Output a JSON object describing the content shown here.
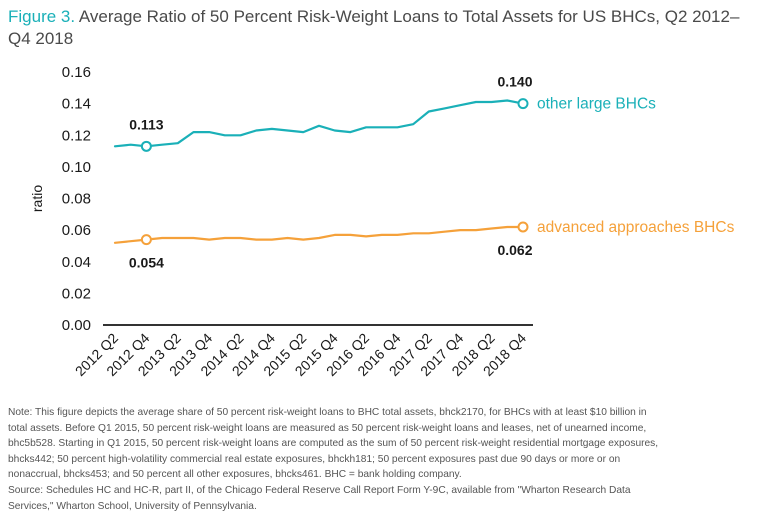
{
  "title": {
    "figure_label": "Figure 3.",
    "text": "Average Ratio of 50 Percent Risk-Weight Loans to Total Assets for US BHCs, Q2 2012–Q4 2018"
  },
  "colors": {
    "other_large": "#1ab0b8",
    "advanced": "#f5a13a",
    "axis": "#333333",
    "text": "#1a1a1a"
  },
  "chart_data": {
    "type": "line",
    "ylabel": "ratio",
    "xlabel": "",
    "ylim": [
      0,
      0.16
    ],
    "yticks": [
      "0.16",
      "0.14",
      "0.12",
      "0.10",
      "0.08",
      "0.06",
      "0.04",
      "0.02",
      "0.00"
    ],
    "x": [
      "2012 Q2",
      "2012 Q3",
      "2012 Q4",
      "2013 Q1",
      "2013 Q2",
      "2013 Q3",
      "2013 Q4",
      "2014 Q1",
      "2014 Q2",
      "2014 Q3",
      "2014 Q4",
      "2015 Q1",
      "2015 Q2",
      "2015 Q3",
      "2015 Q4",
      "2016 Q1",
      "2016 Q2",
      "2016 Q3",
      "2016 Q4",
      "2017 Q1",
      "2017 Q2",
      "2017 Q3",
      "2017 Q4",
      "2018 Q1",
      "2018 Q2",
      "2018 Q3",
      "2018 Q4"
    ],
    "xtick_labels": [
      "2012 Q2",
      "2012 Q4",
      "2013 Q2",
      "2013 Q4",
      "2014 Q2",
      "2014 Q4",
      "2015 Q2",
      "2015 Q4",
      "2016 Q2",
      "2016 Q4",
      "2017 Q2",
      "2017 Q4",
      "2018 Q2",
      "2018 Q4"
    ],
    "series": [
      {
        "name": "other large BHCs",
        "values": [
          0.113,
          0.114,
          0.113,
          0.114,
          0.115,
          0.122,
          0.122,
          0.12,
          0.12,
          0.123,
          0.124,
          0.123,
          0.122,
          0.126,
          0.123,
          0.122,
          0.125,
          0.125,
          0.125,
          0.127,
          0.135,
          0.137,
          0.139,
          0.141,
          0.141,
          0.142,
          0.14
        ],
        "annotations": [
          {
            "label": "0.113",
            "point": "2012 Q4"
          },
          {
            "label": "0.140",
            "point": "2018 Q4"
          }
        ]
      },
      {
        "name": "advanced approaches BHCs",
        "values": [
          0.052,
          0.053,
          0.054,
          0.055,
          0.055,
          0.055,
          0.054,
          0.055,
          0.055,
          0.054,
          0.054,
          0.055,
          0.054,
          0.055,
          0.057,
          0.057,
          0.056,
          0.057,
          0.057,
          0.058,
          0.058,
          0.059,
          0.06,
          0.06,
          0.061,
          0.062,
          0.062
        ],
        "annotations": [
          {
            "label": "0.054",
            "point": "2012 Q4"
          },
          {
            "label": "0.062",
            "point": "2018 Q4"
          }
        ]
      }
    ]
  },
  "note": {
    "lines": [
      "Note: This figure depicts the average share of 50 percent risk-weight loans to BHC total assets, bhck2170, for BHCs with at least $10 billion in",
      "total assets. Before Q1 2015, 50 percent risk-weight loans are measured as 50 percent risk-weight loans and leases, net of unearned income,",
      "bhc5b528. Starting in Q1 2015, 50 percent risk-weight loans are computed as the sum of 50 percent risk-weight residential mortgage exposures,",
      "bhcks442; 50 percent high-volatility commercial real estate exposures, bhckh181; 50 percent exposures past due 90 days or more or on",
      "nonaccrual, bhcks453; and 50 percent all other exposures, bhcks461. BHC = bank holding company.",
      "Source: Schedules HC and HC-R, part II, of the Chicago Federal Reserve Call Report Form Y-9C, available from \"Wharton Research Data",
      "Services,\" Wharton School, University of Pennsylvania."
    ]
  }
}
